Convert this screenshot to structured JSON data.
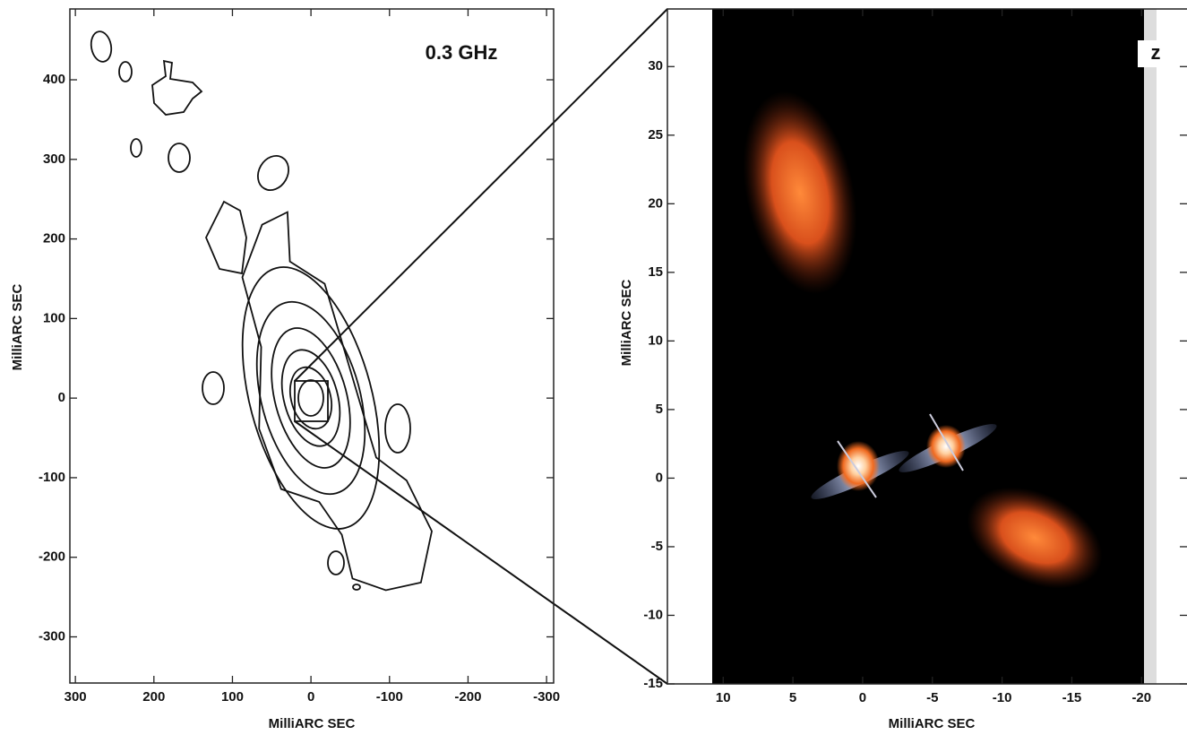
{
  "chart_data": [
    {
      "type": "contour",
      "annotation": "0.3 GHz",
      "xlabel": "MilliARC SEC",
      "ylabel": "MilliARC SEC",
      "xlim": [
        307,
        -309
      ],
      "ylim": [
        -358,
        489
      ],
      "xticks": [
        300,
        200,
        100,
        0,
        -100,
        -200,
        -300
      ],
      "yticks": [
        400,
        300,
        200,
        100,
        0,
        -100,
        -200,
        -300
      ]
    },
    {
      "type": "image",
      "annotation": "z",
      "xlabel": "MilliARC SEC",
      "ylabel": "MilliARC SEC",
      "xlim": [
        14,
        -23.9
      ],
      "ylim": [
        -15,
        34.2
      ],
      "xticks": [
        10,
        5,
        0,
        -5,
        -10,
        -15,
        -20
      ],
      "yticks": [
        30,
        25,
        20,
        15,
        10,
        5,
        0,
        -5,
        -10,
        -15
      ]
    }
  ]
}
